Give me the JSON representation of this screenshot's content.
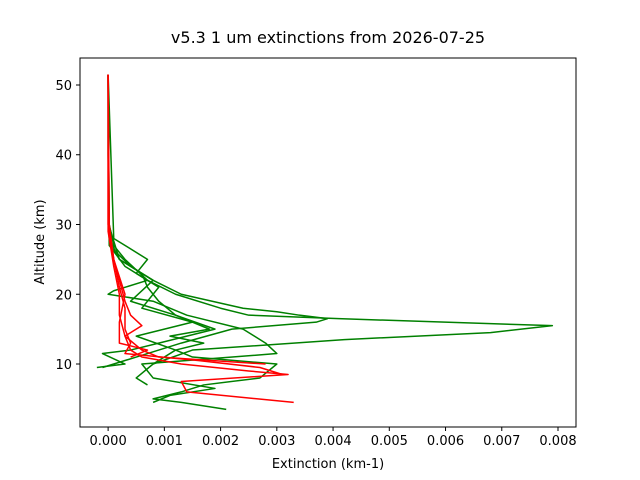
{
  "chart_data": {
    "type": "line",
    "title": "v5.3 1 um extinctions from 2026-07-25",
    "x_label": "Extinction (km-1)",
    "y_label": "Altitude (km)",
    "xlim": [
      -0.0005,
      0.00832
    ],
    "ylim": [
      0.97,
      53.87
    ],
    "xticks": [
      {
        "value": 0,
        "label": "0.000"
      },
      {
        "value": 0.001,
        "label": "0.001"
      },
      {
        "value": 0.002,
        "label": "0.002"
      },
      {
        "value": 0.003,
        "label": "0.003"
      },
      {
        "value": 0.004,
        "label": "0.004"
      },
      {
        "value": 0.005,
        "label": "0.005"
      },
      {
        "value": 0.006,
        "label": "0.006"
      },
      {
        "value": 0.007,
        "label": "0.007"
      },
      {
        "value": 0.008,
        "label": "0.008"
      }
    ],
    "yticks": [
      10,
      20,
      30,
      40,
      50
    ],
    "series": [
      {
        "color": "#008000",
        "x": [
          0,
          0,
          2e-05,
          0.0001,
          0.0003,
          0.0007,
          0.0012,
          0.002,
          0.0025,
          0.0041,
          0.0079,
          0.0068,
          0.0042,
          0.0015,
          0.0008
        ],
        "values": [
          51.5,
          40,
          30,
          27,
          25,
          22,
          20,
          18,
          17,
          16.5,
          15.5,
          14.5,
          13.5,
          12,
          10
        ]
      },
      {
        "color": "#008000",
        "x": [
          0,
          1e-05,
          0.0002,
          0.0008,
          0.0013,
          0.0024,
          0.003,
          0.0034,
          0.0039,
          0.0037,
          0.0022,
          0.0013,
          0.0005,
          -0.0001
        ],
        "values": [
          51.5,
          30,
          25,
          22,
          20,
          18,
          17.5,
          17,
          16.5,
          16,
          15,
          13,
          11,
          9.5
        ]
      },
      {
        "color": "#008000",
        "x": [
          0,
          2e-05,
          0.0002,
          0.0006,
          0.0007,
          0.0009,
          0.0012,
          0.0018,
          0.0011,
          0.0017,
          0.0012,
          0.0015,
          0.003,
          0.0027,
          0.0017,
          0.0013,
          0.0008,
          0.0013,
          0.0021
        ],
        "values": [
          51.5,
          28,
          25,
          23,
          21,
          19,
          17,
          15,
          14,
          13,
          12,
          11,
          10,
          8,
          7,
          6,
          5,
          4.5,
          3.5
        ]
      },
      {
        "color": "#008000",
        "x": [
          0,
          2e-05,
          0.0003,
          0.0007,
          0.0001,
          0,
          0.0008,
          0.0014,
          0.0024,
          0.0028,
          0.003,
          0.0006,
          0.0008,
          0.0019,
          0.0011,
          0.0008
        ],
        "values": [
          51.5,
          27,
          24,
          22,
          20.5,
          20,
          19,
          17,
          15,
          13,
          11.5,
          10,
          8,
          6.5,
          5.5,
          4.5
        ]
      },
      {
        "color": "#008000",
        "x": [
          0,
          2e-05,
          0.0004,
          0.0008,
          0.0004,
          0.0012,
          0.0019,
          0.0009,
          0.0004,
          -0.0001,
          0.0003,
          -0.0002
        ],
        "values": [
          51.5,
          27,
          24,
          22,
          19,
          17,
          15,
          13,
          12,
          11.5,
          10,
          9.5
        ]
      },
      {
        "color": "#008000",
        "x": [
          0,
          0.0001,
          0.0007,
          0.0005,
          0.0009,
          0.0006,
          0.0015,
          0.0005,
          0.0012,
          0.0008,
          0.0005,
          0.0007
        ],
        "values": [
          51.5,
          28,
          25,
          23,
          21,
          18,
          16,
          14,
          12,
          10,
          8,
          7
        ]
      },
      {
        "color": "#ff0000",
        "x": [
          0,
          2e-05,
          0.0001,
          0.0002,
          0.0003,
          0.0004,
          0.0006,
          0.0003,
          0.0004,
          0.0006,
          0.0013,
          0.0025,
          0.0032,
          0.0013,
          0.0014,
          0.0033
        ],
        "values": [
          51.5,
          30,
          25,
          22,
          19,
          17,
          15.5,
          14,
          12,
          11,
          10,
          9,
          8.5,
          7.5,
          6,
          4.5
        ]
      },
      {
        "color": "#ff0000",
        "x": [
          0,
          1e-05,
          0.0001,
          0.0002,
          0.0003,
          0.0003,
          0.0004,
          0.0003,
          0.0016,
          0.0027,
          0.0031
        ],
        "values": [
          51.5,
          30,
          25,
          21,
          18,
          15,
          13,
          11.5,
          10.5,
          9.5,
          8.5
        ]
      },
      {
        "color": "#ff0000",
        "x": [
          0,
          0,
          0.0001,
          0.0002,
          0.0002,
          0.0003,
          0.0006,
          0.0009,
          0.0028
        ],
        "values": [
          51.5,
          29,
          24,
          20,
          17,
          14,
          12,
          11,
          10
        ]
      },
      {
        "color": "#ff0000",
        "x": [
          0,
          0,
          0.0001,
          0.0003,
          0.0002,
          0.0002,
          0.0007,
          0.0004
        ],
        "values": [
          51.5,
          30,
          25,
          20,
          16,
          13,
          12,
          11
        ]
      }
    ]
  }
}
